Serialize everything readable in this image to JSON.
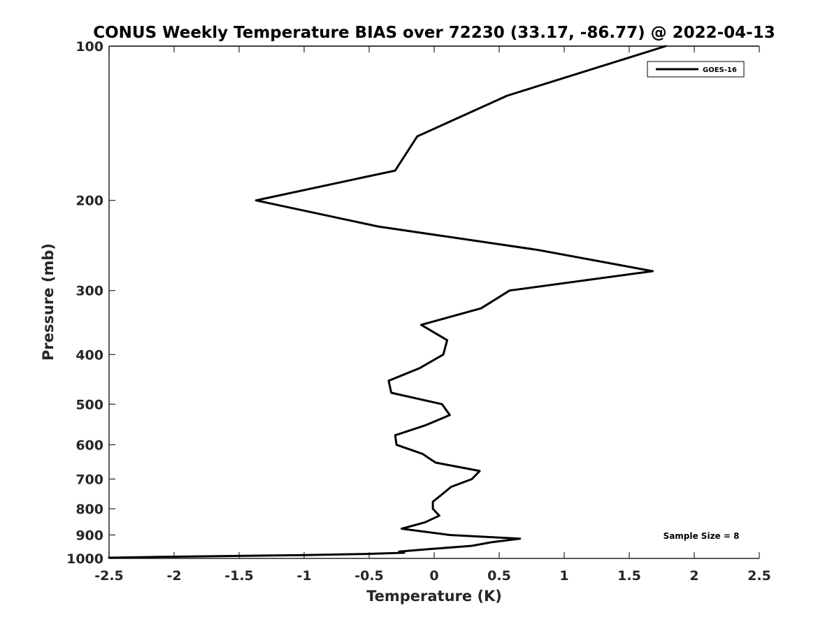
{
  "chart_data": {
    "type": "line",
    "title": "CONUS Weekly Temperature BIAS over 72230 (33.17, -86.77) @ 2022-04-13",
    "xlabel": "Temperature (K)",
    "ylabel": "Pressure (mb)",
    "xlim": [
      -2.5,
      2.5
    ],
    "ylim": [
      100,
      1000
    ],
    "y_scale": "log",
    "y_reversed": true,
    "x_ticks": [
      -2.5,
      -2,
      -1.5,
      -1,
      -0.5,
      0,
      0.5,
      1,
      1.5,
      2,
      2.5
    ],
    "x_tick_labels": [
      "-2.5",
      "-2",
      "-1.5",
      "-1",
      "-0.5",
      "0",
      "0.5",
      "1",
      "1.5",
      "2",
      "2.5"
    ],
    "y_ticks": [
      100,
      200,
      300,
      400,
      500,
      600,
      700,
      800,
      900,
      1000
    ],
    "y_tick_labels": [
      "100",
      "200",
      "300",
      "400",
      "500",
      "600",
      "700",
      "800",
      "900",
      "1000"
    ],
    "grid": false,
    "legend_position": "top-right",
    "series": [
      {
        "name": "GOES-16",
        "color": "#000000",
        "points": [
          {
            "x": 1.78,
            "y": 100
          },
          {
            "x": 0.56,
            "y": 125
          },
          {
            "x": -0.13,
            "y": 150
          },
          {
            "x": -0.3,
            "y": 175
          },
          {
            "x": -1.37,
            "y": 200
          },
          {
            "x": -0.43,
            "y": 225
          },
          {
            "x": 0.8,
            "y": 250
          },
          {
            "x": 1.68,
            "y": 275
          },
          {
            "x": 0.58,
            "y": 300
          },
          {
            "x": 0.36,
            "y": 325
          },
          {
            "x": -0.1,
            "y": 350
          },
          {
            "x": 0.1,
            "y": 375
          },
          {
            "x": 0.07,
            "y": 400
          },
          {
            "x": -0.11,
            "y": 425
          },
          {
            "x": -0.35,
            "y": 450
          },
          {
            "x": -0.33,
            "y": 475
          },
          {
            "x": 0.06,
            "y": 500
          },
          {
            "x": 0.12,
            "y": 525
          },
          {
            "x": -0.07,
            "y": 550
          },
          {
            "x": -0.3,
            "y": 575
          },
          {
            "x": -0.29,
            "y": 600
          },
          {
            "x": -0.09,
            "y": 625
          },
          {
            "x": 0.01,
            "y": 650
          },
          {
            "x": 0.35,
            "y": 675
          },
          {
            "x": 0.29,
            "y": 700
          },
          {
            "x": 0.13,
            "y": 725
          },
          {
            "x": 0.06,
            "y": 750
          },
          {
            "x": -0.01,
            "y": 775
          },
          {
            "x": -0.01,
            "y": 800
          },
          {
            "x": 0.04,
            "y": 825
          },
          {
            "x": -0.07,
            "y": 850
          },
          {
            "x": -0.25,
            "y": 875
          },
          {
            "x": 0.12,
            "y": 900
          },
          {
            "x": 0.66,
            "y": 915
          },
          {
            "x": 0.44,
            "y": 930
          },
          {
            "x": 0.29,
            "y": 945
          },
          {
            "x": -0.06,
            "y": 960
          },
          {
            "x": -0.27,
            "y": 970
          },
          {
            "x": -0.23,
            "y": 975
          },
          {
            "x": -0.52,
            "y": 980
          },
          {
            "x": -0.99,
            "y": 985
          },
          {
            "x": -2.1,
            "y": 993
          },
          {
            "x": -2.5,
            "y": 997
          }
        ]
      }
    ],
    "annotations": [
      "Sample Size = 8"
    ]
  }
}
